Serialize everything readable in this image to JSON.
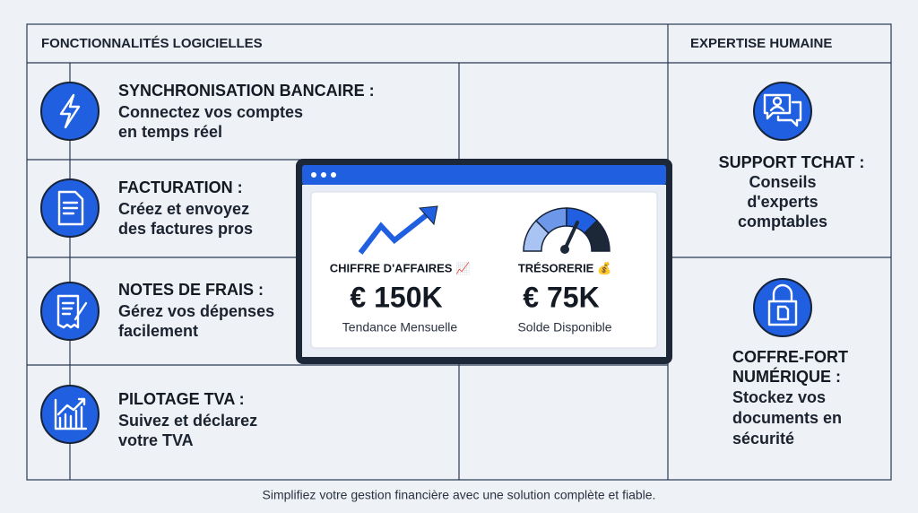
{
  "header": {
    "left": "FONCTIONNALITÉS LOGICIELLES",
    "right": "EXPERTISE HUMAINE"
  },
  "features": [
    {
      "title": "SYNCHRONISATION BANCAIRE :",
      "lines": [
        "Connectez vos comptes",
        "en temps réel"
      ]
    },
    {
      "title": "FACTURATION :",
      "lines": [
        "Créez et envoyez",
        "des factures pros"
      ]
    },
    {
      "title": "NOTES DE FRAIS :",
      "lines": [
        "Gérez vos dépenses",
        "facilement"
      ]
    },
    {
      "title": "PILOTAGE TVA :",
      "lines": [
        "Suivez et déclarez",
        "votre TVA"
      ]
    }
  ],
  "expertise": [
    {
      "title_lines": [
        "SUPPORT TCHAT :"
      ],
      "desc": [
        "Conseils",
        "d'experts",
        "comptables"
      ]
    },
    {
      "title_lines": [
        "COFFRE-FORT",
        "NUMÉRIQUE :"
      ],
      "desc": [
        "Stockez vos",
        "documents en",
        "sécurité"
      ]
    }
  ],
  "dashboard": {
    "metrics": [
      {
        "label": "CHIFFRE D'AFFAIRES 📈",
        "value": "€ 150K",
        "caption": "Tendance Mensuelle"
      },
      {
        "label": "TRÉSORERIE 💰",
        "value": "€ 75K",
        "caption": "Solde Disponible"
      }
    ]
  },
  "footer": "Simplifiez votre gestion financière avec une solution complète et fiable."
}
